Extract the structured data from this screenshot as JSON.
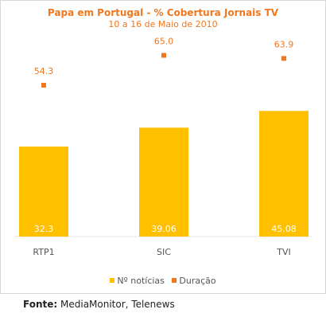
{
  "chart_data": {
    "type": "bar",
    "title": "Papa em Portugal - % Cobertura Jornais TV",
    "subtitle": "10 a 16 de Maio de 2010",
    "categories": [
      "RTP1",
      "SIC",
      "TVI"
    ],
    "series": [
      {
        "name": "Nº notícias",
        "type": "bar",
        "color": "#ffc000",
        "values": [
          32.3,
          39.06,
          45.08
        ],
        "labels": [
          "32.3",
          "39.06",
          "45.08"
        ]
      },
      {
        "name": "Duração",
        "type": "scatter",
        "color": "#f07820",
        "values": [
          54.3,
          65.0,
          63.9
        ],
        "labels": [
          "54.3",
          "65.0",
          "63.9"
        ]
      }
    ],
    "ylim": [
      0,
      70
    ],
    "grid": false,
    "legend": "bottom"
  },
  "source": {
    "label": "Fonte:",
    "text": "MediaMonitor, Telenews"
  }
}
